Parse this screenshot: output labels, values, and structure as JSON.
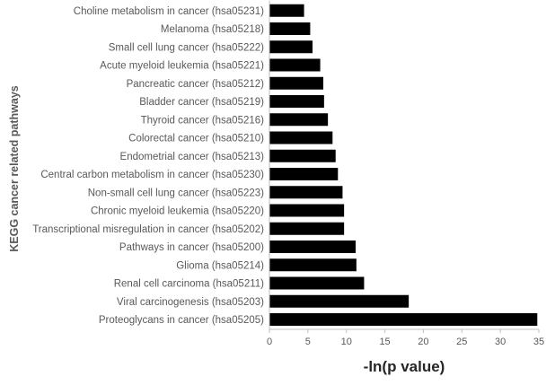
{
  "chart_data": {
    "type": "bar",
    "orientation": "horizontal",
    "categories": [
      "Proteoglycans in cancer (hsa05205)",
      "Viral carcinogenesis (hsa05203)",
      "Renal cell carcinoma (hsa05211)",
      "Glioma (hsa05214)",
      "Pathways in cancer (hsa05200)",
      "Transcriptional misregulation in cancer (hsa05202)",
      "Chronic myeloid leukemia (hsa05220)",
      "Non-small cell lung cancer (hsa05223)",
      "Central carbon metabolism in cancer (hsa05230)",
      "Endometrial cancer (hsa05213)",
      "Colorectal cancer (hsa05210)",
      "Thyroid cancer (hsa05216)",
      "Bladder cancer (hsa05219)",
      "Pancreatic cancer (hsa05212)",
      "Acute myeloid leukemia (hsa05221)",
      "Small cell lung cancer (hsa05222)",
      "Melanoma (hsa05218)",
      "Choline metabolism in cancer (hsa05231)"
    ],
    "values": [
      34.8,
      18.1,
      12.3,
      11.3,
      11.2,
      9.7,
      9.7,
      9.5,
      8.9,
      8.6,
      8.2,
      7.6,
      7.1,
      7.0,
      6.6,
      5.6,
      5.3,
      4.5
    ],
    "xlabel": "-ln(p value)",
    "ylabel": "KEGG cancer related pathways",
    "title": "",
    "xlim": [
      0,
      35
    ],
    "xticks": [
      "0",
      "5",
      "10",
      "15",
      "20",
      "25",
      "30",
      "35"
    ],
    "grid": false,
    "legend": "none",
    "bar_color": "#000000"
  }
}
